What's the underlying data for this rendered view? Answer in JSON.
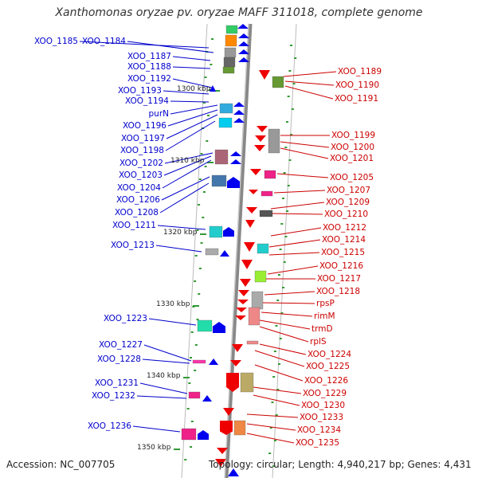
{
  "title": "Xanthomonas oryzae pv. oryzae MAFF 311018, complete genome",
  "scale_labels": [
    "1300 kbp",
    "1310 kbp",
    "1320 kbp",
    "1330 kbp",
    "1340 kbp",
    "1350 kbp"
  ],
  "left_genes": [
    "XOO_1185",
    "XOO_1184",
    "XOO_1187",
    "XOO_1188",
    "XOO_1192",
    "XOO_1193",
    "XOO_1194",
    "purN",
    "XOO_1196",
    "XOO_1197",
    "XOO_1198",
    "XOO_1202",
    "XOO_1203",
    "XOO_1204",
    "XOO_1206",
    "XOO_1208",
    "XOO_1211",
    "XOO_1213",
    "XOO_1223",
    "XOO_1227",
    "XOO_1228",
    "XOO_1231",
    "XOO_1232",
    "XOO_1236"
  ],
  "right_genes": [
    "XOO_1189",
    "XOO_1190",
    "XOO_1191",
    "XOO_1199",
    "XOO_1200",
    "XOO_1201",
    "XOO_1205",
    "XOO_1207",
    "XOO_1209",
    "XOO_1210",
    "XOO_1212",
    "XOO_1214",
    "XOO_1215",
    "XOO_1216",
    "XOO_1217",
    "XOO_1218",
    "rpsP",
    "rimM",
    "trmD",
    "rplS",
    "XOO_1224",
    "XOO_1225",
    "XOO_1226",
    "XOO_1229",
    "XOO_1230",
    "XOO_1233",
    "XOO_1234",
    "XOO_1235"
  ],
  "footer": {
    "accession": "Accession: NC_007705",
    "topology": "Topology: circular; Length: 4,940,217 bp; Genes: 4,431"
  },
  "colors": {
    "forward_strand": "#0000ee",
    "reverse_strand": "#ee0000",
    "left_label": "#0000cc",
    "right_label": "#cc0000",
    "axis": "#888888",
    "tick": "#339933"
  }
}
